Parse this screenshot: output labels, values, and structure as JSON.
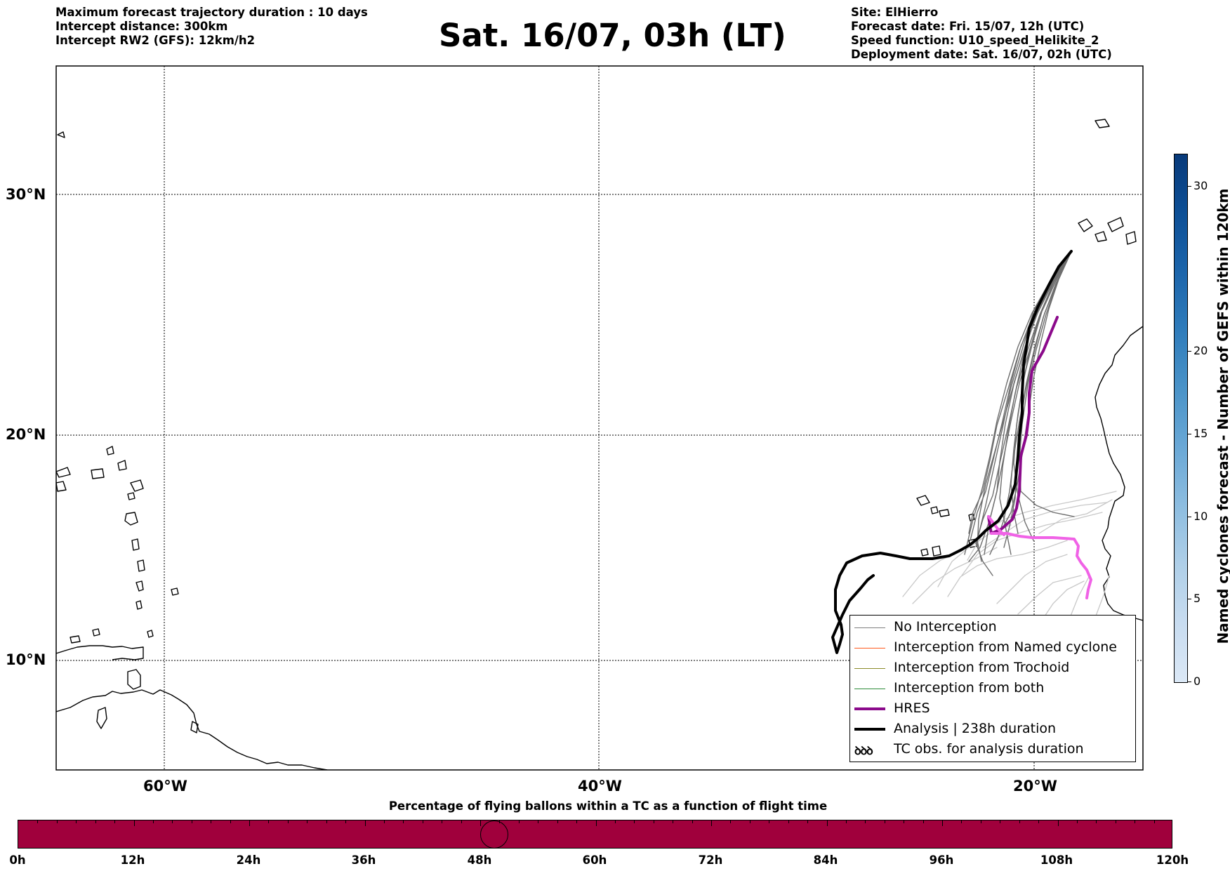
{
  "header": {
    "left_lines": [
      "Maximum forecast trajectory duration : 10 days",
      "Intercept distance: 300km",
      "Intercept RW2 (GFS):  12km/h2"
    ],
    "title": "Sat. 16/07, 03h (LT)",
    "right_lines": [
      "Site: ElHierro",
      "Forecast date: Fri. 15/07, 12h (UTC)",
      "Speed function: U10_speed_Helikite_2",
      "Deployment date: Sat. 16/07, 02h (UTC)"
    ]
  },
  "map": {
    "lat_labels": [
      "30°N",
      "20°N",
      "10°N"
    ],
    "lon_labels": [
      "60°W",
      "40°W",
      "20°W"
    ],
    "gridlines": "dotted"
  },
  "legend": {
    "items": [
      {
        "label": "No Interception",
        "color": "#7f7f7f"
      },
      {
        "label": "Interception from Named cyclone",
        "color": "#ff5a1e"
      },
      {
        "label": "Interception from Trochoid",
        "color": "#8c8c2a"
      },
      {
        "label": "Interception from both",
        "color": "#2e8b3a"
      },
      {
        "label": "HRES",
        "color": "#8b0a8b"
      },
      {
        "label": "Analysis | 238h duration",
        "color": "#000000"
      },
      {
        "label": "TC obs. for analysis duration",
        "symbol": "ꝺꝺꝺ"
      }
    ]
  },
  "colorbar": {
    "title": "Named cyclones forecast - Number of GEFS within 120km",
    "ticks": [
      "0",
      "5",
      "10",
      "15",
      "20",
      "30"
    ],
    "colors": [
      "#dbe8f6",
      "#c8dcf0",
      "#afcfe8",
      "#8dbde0",
      "#6aa8d6",
      "#4a93c8",
      "#2f7cbb",
      "#1c65ab",
      "#0d4f96",
      "#083a7a"
    ]
  },
  "progress_bar": {
    "title": "Percentage of flying ballons within a TC as a function of flight time",
    "labels": [
      "0h",
      "12h",
      "24h",
      "36h",
      "48h",
      "60h",
      "72h",
      "84h",
      "96h",
      "108h",
      "120h"
    ],
    "color": "#a0003c",
    "current_marker_hours": 49.5
  }
}
